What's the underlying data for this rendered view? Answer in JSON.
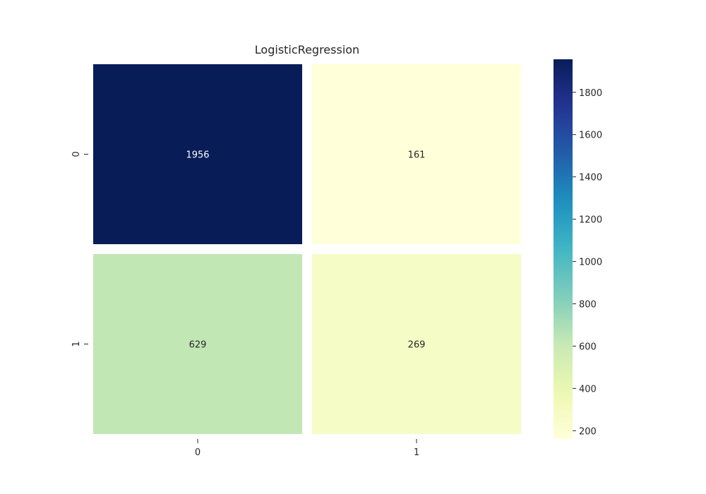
{
  "chart_data": {
    "type": "heatmap",
    "title": "LogisticRegression",
    "xlabel": "",
    "ylabel": "",
    "x_categories": [
      "0",
      "1"
    ],
    "y_categories": [
      "0",
      "1"
    ],
    "values": [
      [
        1956,
        161
      ],
      [
        629,
        269
      ]
    ],
    "colormap": "YlGnBu",
    "colorbar": {
      "min": 161,
      "max": 1956,
      "ticks": [
        200,
        400,
        600,
        800,
        1000,
        1200,
        1400,
        1600,
        1800
      ],
      "tick_labels": [
        "200",
        "400",
        "600",
        "800",
        "1000",
        "1200",
        "1400",
        "1600",
        "1800"
      ]
    },
    "grid": false,
    "cell_gap_color": "#ffffff"
  }
}
